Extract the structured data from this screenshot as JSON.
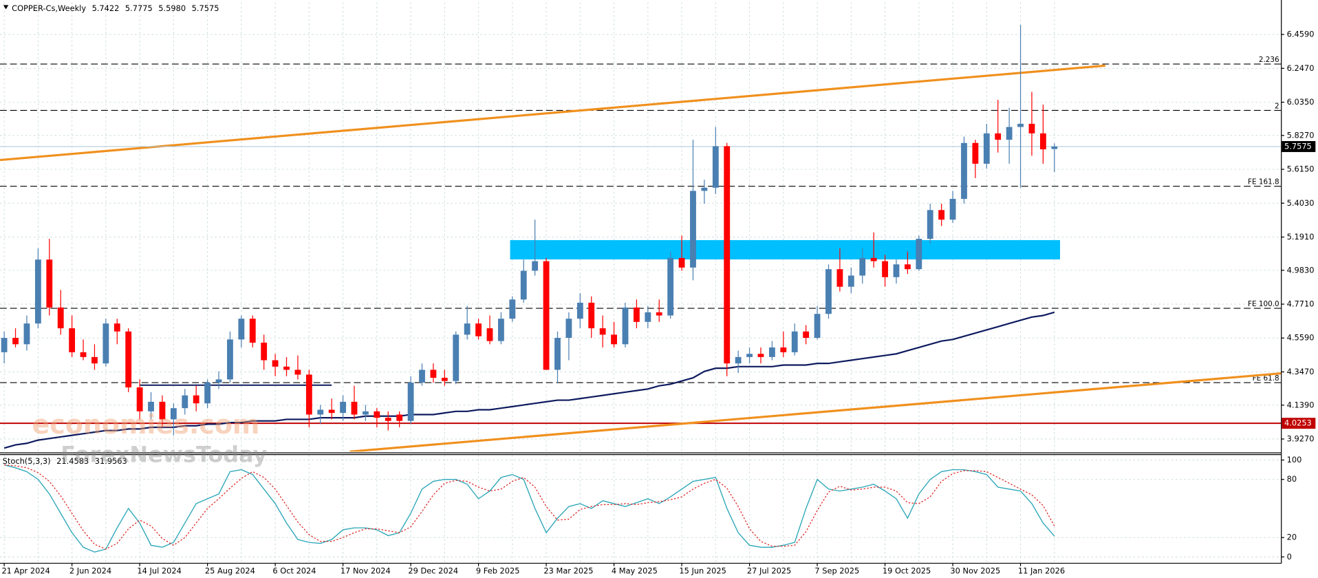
{
  "chart_data": [
    {
      "type": "candlestick",
      "title": "COPPER-Cs,Weekly",
      "header_values": [
        "5.7422",
        "5.7775",
        "5.5980",
        "5.7575"
      ],
      "categories": [
        "21 Apr 2024",
        null,
        null,
        null,
        null,
        null,
        "2 Jun 2024",
        null,
        null,
        null,
        null,
        null,
        "14 Jul 2024",
        null,
        null,
        null,
        null,
        null,
        "25 Aug 2024",
        null,
        null,
        null,
        null,
        null,
        "6 Oct 2024",
        null,
        null,
        null,
        null,
        null,
        "17 Nov 2024",
        null,
        null,
        null,
        null,
        null,
        "29 Dec 2024",
        null,
        null,
        null,
        null,
        null,
        "9 Feb 2025",
        null,
        null,
        null,
        null,
        null,
        "23 Mar 2025",
        null,
        null,
        null,
        null,
        null,
        "4 May 2025",
        null,
        null,
        null,
        null,
        null,
        "15 Jun 2025",
        null,
        null,
        null,
        null,
        null,
        "27 Jul 2025",
        null,
        null,
        null,
        null,
        null,
        "7 Sep 2025",
        null,
        null,
        null,
        null,
        null,
        "19 Oct 2025",
        null,
        null,
        null,
        null,
        null,
        "30 Nov 2025",
        null,
        null,
        null,
        null,
        null,
        "11 Jan 2026",
        null,
        null,
        null
      ],
      "ohlc": [
        [
          4.47,
          4.6,
          4.4,
          4.56
        ],
        [
          4.56,
          4.62,
          4.5,
          4.52
        ],
        [
          4.52,
          4.7,
          4.48,
          4.65
        ],
        [
          4.65,
          5.12,
          4.62,
          5.05
        ],
        [
          5.05,
          5.18,
          4.7,
          4.75
        ],
        [
          4.75,
          4.86,
          4.58,
          4.62
        ],
        [
          4.62,
          4.7,
          4.44,
          4.47
        ],
        [
          4.47,
          4.55,
          4.42,
          4.44
        ],
        [
          4.44,
          4.52,
          4.36,
          4.4
        ],
        [
          4.4,
          4.68,
          4.38,
          4.65
        ],
        [
          4.65,
          4.68,
          4.52,
          4.6
        ],
        [
          4.6,
          4.62,
          4.22,
          4.25
        ],
        [
          4.25,
          4.3,
          4.05,
          4.1
        ],
        [
          4.1,
          4.22,
          4.05,
          4.16
        ],
        [
          4.16,
          4.2,
          4.0,
          4.05
        ],
        [
          4.05,
          4.15,
          3.95,
          4.12
        ],
        [
          4.12,
          4.24,
          4.08,
          4.2
        ],
        [
          4.2,
          4.26,
          4.1,
          4.15
        ],
        [
          4.15,
          4.3,
          4.12,
          4.28
        ],
        [
          4.28,
          4.35,
          4.24,
          4.3
        ],
        [
          4.3,
          4.6,
          4.28,
          4.55
        ],
        [
          4.55,
          4.7,
          4.5,
          4.68
        ],
        [
          4.68,
          4.7,
          4.5,
          4.53
        ],
        [
          4.53,
          4.58,
          4.36,
          4.42
        ],
        [
          4.42,
          4.46,
          4.32,
          4.38
        ],
        [
          4.38,
          4.44,
          4.32,
          4.36
        ],
        [
          4.36,
          4.45,
          4.3,
          4.33
        ],
        [
          4.33,
          4.36,
          4.0,
          4.08
        ],
        [
          4.08,
          4.14,
          4.02,
          4.11
        ],
        [
          4.11,
          4.18,
          4.05,
          4.09
        ],
        [
          4.09,
          4.2,
          4.04,
          4.16
        ],
        [
          4.16,
          4.26,
          4.05,
          4.08
        ],
        [
          4.08,
          4.14,
          4.04,
          4.1
        ],
        [
          4.1,
          4.12,
          4.0,
          4.06
        ],
        [
          4.06,
          4.1,
          3.98,
          4.04
        ],
        [
          4.08,
          4.1,
          4.0,
          4.04
        ],
        [
          4.04,
          4.32,
          4.02,
          4.28
        ],
        [
          4.28,
          4.4,
          4.26,
          4.36
        ],
        [
          4.36,
          4.4,
          4.28,
          4.31
        ],
        [
          4.31,
          4.36,
          4.26,
          4.29
        ],
        [
          4.29,
          4.6,
          4.27,
          4.58
        ],
        [
          4.58,
          4.76,
          4.55,
          4.65
        ],
        [
          4.65,
          4.68,
          4.55,
          4.57
        ],
        [
          4.62,
          4.7,
          4.52,
          4.54
        ],
        [
          4.54,
          4.72,
          4.52,
          4.68
        ],
        [
          4.68,
          4.82,
          4.66,
          4.8
        ],
        [
          4.8,
          5.05,
          4.78,
          4.98
        ],
        [
          4.98,
          5.3,
          4.95,
          5.04
        ],
        [
          5.04,
          5.06,
          4.36,
          4.36
        ],
        [
          4.36,
          4.6,
          4.28,
          4.56
        ],
        [
          4.56,
          4.72,
          4.42,
          4.68
        ],
        [
          4.68,
          4.84,
          4.62,
          4.78
        ],
        [
          4.78,
          4.82,
          4.56,
          4.62
        ],
        [
          4.62,
          4.7,
          4.5,
          4.58
        ],
        [
          4.58,
          4.66,
          4.5,
          4.52
        ],
        [
          4.52,
          4.78,
          4.5,
          4.75
        ],
        [
          4.75,
          4.8,
          4.62,
          4.66
        ],
        [
          4.66,
          4.76,
          4.62,
          4.72
        ],
        [
          4.72,
          4.8,
          4.66,
          4.7
        ],
        [
          4.7,
          5.1,
          4.68,
          5.06
        ],
        [
          5.06,
          5.2,
          4.98,
          5.0
        ],
        [
          5.0,
          5.8,
          4.92,
          5.48
        ],
        [
          5.48,
          5.55,
          5.4,
          5.5
        ],
        [
          5.5,
          5.88,
          5.46,
          5.76
        ],
        [
          5.76,
          5.78,
          4.32,
          4.4
        ],
        [
          4.4,
          4.48,
          4.34,
          4.44
        ],
        [
          4.44,
          4.5,
          4.4,
          4.46
        ],
        [
          4.46,
          4.5,
          4.4,
          4.44
        ],
        [
          4.44,
          4.54,
          4.42,
          4.5
        ],
        [
          4.5,
          4.6,
          4.44,
          4.47
        ],
        [
          4.47,
          4.65,
          4.45,
          4.6
        ],
        [
          4.6,
          4.64,
          4.52,
          4.56
        ],
        [
          4.56,
          4.76,
          4.55,
          4.71
        ],
        [
          4.71,
          5.02,
          4.68,
          4.99
        ],
        [
          4.99,
          5.12,
          4.85,
          4.88
        ],
        [
          4.88,
          5.0,
          4.84,
          4.95
        ],
        [
          4.95,
          5.12,
          4.9,
          5.06
        ],
        [
          5.06,
          5.22,
          5.0,
          5.04
        ],
        [
          5.04,
          5.08,
          4.88,
          4.94
        ],
        [
          4.94,
          5.05,
          4.9,
          5.02
        ],
        [
          5.02,
          5.1,
          4.96,
          4.99
        ],
        [
          4.99,
          5.2,
          4.98,
          5.18
        ],
        [
          5.18,
          5.4,
          5.15,
          5.36
        ],
        [
          5.36,
          5.4,
          5.26,
          5.3
        ],
        [
          5.3,
          5.48,
          5.28,
          5.43
        ],
        [
          5.43,
          5.82,
          5.4,
          5.78
        ],
        [
          5.78,
          5.8,
          5.56,
          5.65
        ],
        [
          5.65,
          5.9,
          5.62,
          5.84
        ],
        [
          5.84,
          6.05,
          5.72,
          5.8
        ],
        [
          5.8,
          6.0,
          5.65,
          5.88
        ],
        [
          5.88,
          6.52,
          5.5,
          5.9
        ],
        [
          5.9,
          6.1,
          5.7,
          5.84
        ],
        [
          5.84,
          6.02,
          5.65,
          5.74
        ],
        [
          5.7422,
          5.7775,
          5.598,
          5.7575
        ]
      ],
      "up_color": "#4a7fb2",
      "down_color": "#ff0000",
      "moving_average": {
        "color": "#0d1a5e",
        "values": [
          3.87,
          3.89,
          3.9,
          3.92,
          3.93,
          3.94,
          3.95,
          3.96,
          3.97,
          3.98,
          3.98,
          3.99,
          3.99,
          4.0,
          4.0,
          4.0,
          4.01,
          4.01,
          4.02,
          4.02,
          4.03,
          4.03,
          4.04,
          4.04,
          4.04,
          4.05,
          4.05,
          4.05,
          4.06,
          4.06,
          4.06,
          4.06,
          4.07,
          4.07,
          4.07,
          4.07,
          4.08,
          4.08,
          4.08,
          4.09,
          4.1,
          4.1,
          4.11,
          4.11,
          4.12,
          4.13,
          4.14,
          4.15,
          4.16,
          4.17,
          4.17,
          4.18,
          4.19,
          4.2,
          4.21,
          4.22,
          4.23,
          4.24,
          4.26,
          4.27,
          4.29,
          4.31,
          4.35,
          4.37,
          4.37,
          4.38,
          4.38,
          4.38,
          4.38,
          4.39,
          4.39,
          4.39,
          4.4,
          4.4,
          4.41,
          4.42,
          4.43,
          4.44,
          4.45,
          4.46,
          4.48,
          4.5,
          4.52,
          4.54,
          4.55,
          4.57,
          4.59,
          4.61,
          4.63,
          4.65,
          4.67,
          4.69,
          4.7,
          4.72
        ]
      },
      "ylim": [
        3.848,
        6.659
      ],
      "yticks": [
        {
          "value": 6.459,
          "label": "6.4590"
        },
        {
          "value": 6.247,
          "label": "6.2470"
        },
        {
          "value": 6.035,
          "label": "6.0350"
        },
        {
          "value": 5.827,
          "label": "5.8270"
        },
        {
          "value": 5.615,
          "label": "5.6150"
        },
        {
          "value": 5.403,
          "label": "5.4030"
        },
        {
          "value": 5.191,
          "label": "5.1910"
        },
        {
          "value": 4.983,
          "label": "4.9830"
        },
        {
          "value": 4.771,
          "label": "4.7710"
        },
        {
          "value": 4.559,
          "label": "4.5590"
        },
        {
          "value": 4.347,
          "label": "4.3470"
        },
        {
          "value": 4.139,
          "label": "4.1390"
        },
        {
          "value": 3.927,
          "label": "3.9270"
        }
      ],
      "grid": true,
      "levels": [
        {
          "label": "2.236",
          "value": 6.274
        },
        {
          "label": "2",
          "value": 5.984
        },
        {
          "label": "FE 161.8",
          "value": 5.509
        },
        {
          "label": "FE 100.0",
          "value": 4.745
        },
        {
          "label": "FE 61.8",
          "value": 4.28
        }
      ],
      "support": {
        "value": 4.0253,
        "color": "#c00000"
      },
      "trendlines": [
        {
          "color": "#f0901e",
          "points": [
            [
              -0.37,
              5.673
            ],
            [
              97.5,
              6.264
            ]
          ]
        },
        {
          "color": "#f0901e",
          "points": [
            [
              30.6,
              3.848
            ],
            [
              113.1,
              4.338
            ]
          ]
        }
      ],
      "zone": {
        "color": "#00bfff",
        "x": [
          44.8,
          93.5
        ],
        "y": [
          5.051,
          5.172
        ]
      },
      "segment": {
        "value": 4.264,
        "x": [
          12,
          29
        ]
      },
      "watermarks": [
        "economies.com",
        "ForexNewsToday"
      ]
    },
    {
      "type": "line",
      "title": "Stoch(5,3,3)",
      "series": [
        {
          "color": "#2aa6b8",
          "values": [
            95,
            92,
            88,
            80,
            65,
            45,
            25,
            10,
            5,
            8,
            30,
            50,
            35,
            12,
            10,
            15,
            35,
            55,
            60,
            65,
            88,
            90,
            85,
            70,
            55,
            35,
            18,
            15,
            14,
            18,
            28,
            30,
            30,
            28,
            22,
            25,
            45,
            70,
            78,
            80,
            80,
            75,
            60,
            68,
            82,
            85,
            80,
            50,
            25,
            40,
            52,
            55,
            50,
            58,
            55,
            52,
            56,
            60,
            55,
            62,
            70,
            78,
            80,
            82,
            50,
            25,
            12,
            10,
            10,
            12,
            15,
            50,
            80,
            70,
            68,
            70,
            72,
            75,
            68,
            60,
            40,
            65,
            80,
            88,
            90,
            90,
            88,
            85,
            72,
            70,
            68,
            55,
            35,
            21.4583
          ]
        },
        {
          "color": "#e03030",
          "dashed": true,
          "values": [
            95,
            94,
            92,
            87,
            78,
            63,
            45,
            27,
            13,
            8,
            14,
            29,
            38,
            32,
            19,
            12,
            20,
            35,
            50,
            60,
            71,
            81,
            88,
            82,
            70,
            53,
            36,
            23,
            16,
            16,
            20,
            25,
            29,
            29,
            27,
            25,
            31,
            47,
            64,
            76,
            79,
            78,
            72,
            68,
            70,
            78,
            82,
            72,
            52,
            38,
            39,
            49,
            52,
            54,
            54,
            55,
            54,
            56,
            57,
            59,
            62,
            70,
            76,
            80,
            71,
            52,
            29,
            16,
            11,
            11,
            12,
            26,
            48,
            67,
            73,
            69,
            70,
            72,
            72,
            68,
            56,
            55,
            62,
            78,
            86,
            89,
            89,
            88,
            82,
            76,
            70,
            64,
            53,
            31.9563
          ]
        }
      ],
      "ylim": [
        -6.1,
        105.2
      ],
      "yticks": [
        0,
        20,
        80,
        100
      ],
      "grid": true
    }
  ]
}
